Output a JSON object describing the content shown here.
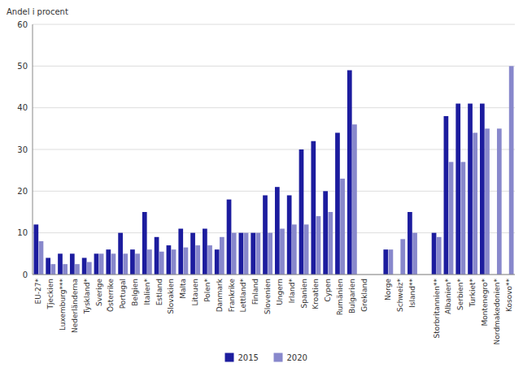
{
  "chart_data": {
    "type": "bar",
    "y_label": "Andel i procent",
    "categories": [
      "EU-27*",
      "Tjeckien",
      "Luxemburg***",
      "Nederländerna",
      "Tyskland*",
      "Sverige",
      "Österrike",
      "Portugal",
      "Belgien",
      "Italien*",
      "Estland",
      "Slovakien",
      "Malta",
      "Litauen",
      "Polen*",
      "Danmark",
      "Frankrike",
      "Lettland*",
      "Finland",
      "Slovenien",
      "Ungern",
      "Irland*",
      "Spanien",
      "Kroatien",
      "Cypen",
      "Rumänien",
      "Bulgarien",
      "Grekland",
      null,
      "Norge",
      "Schweiz*",
      "Island**",
      null,
      "Storbritannien**",
      "Albanien*",
      "Serbien*",
      "Turkiet*",
      "Montenegro*",
      "Nordmakedonien*",
      "Kosovo**"
    ],
    "series": [
      {
        "name": "2015",
        "color": "#1c1c9e",
        "values": [
          12,
          4,
          5,
          5,
          4,
          5,
          6,
          10,
          6,
          15,
          9,
          7,
          11,
          10,
          11,
          6,
          18,
          10,
          10,
          19,
          21,
          19,
          30,
          32,
          20,
          34,
          49,
          0,
          0,
          6,
          0,
          15,
          0,
          10,
          38,
          41,
          41,
          41,
          0,
          0
        ]
      },
      {
        "name": "2020",
        "color": "#8888cc",
        "values": [
          8,
          2.5,
          2.5,
          2.5,
          3,
          5,
          5,
          5,
          5,
          6,
          5.5,
          6,
          6.5,
          7,
          7,
          9,
          10,
          10,
          10,
          10,
          11,
          12,
          12,
          14,
          15,
          23,
          36,
          0,
          0,
          6,
          8.5,
          10,
          0,
          9,
          27,
          27,
          34,
          35,
          35,
          50
        ]
      }
    ],
    "ylim": [
      0,
      60
    ],
    "yticks": [
      0,
      10,
      20,
      30,
      40,
      50,
      60
    ],
    "grid": true,
    "legend": "bottom"
  }
}
